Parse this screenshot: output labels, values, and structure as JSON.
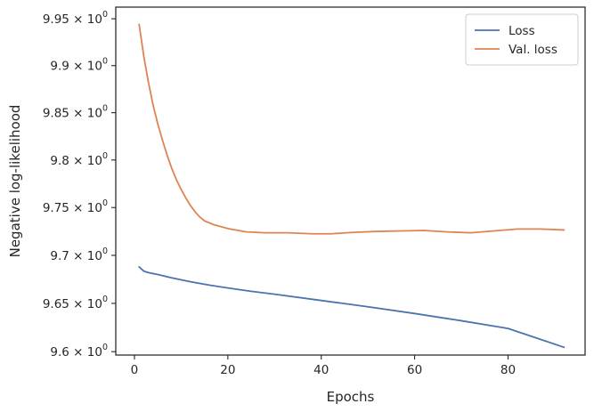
{
  "chart_data": {
    "type": "line",
    "xlabel": "Epochs",
    "ylabel": "Negative log-likelihood",
    "xlim": [
      -4,
      96.5
    ],
    "ylim": [
      9.5965,
      9.9625
    ],
    "yscale": "log",
    "grid": false,
    "legend_position": "top-right",
    "x_ticks": [
      0,
      20,
      40,
      60,
      80
    ],
    "x_tick_labels": [
      "0",
      "20",
      "40",
      "60",
      "80"
    ],
    "y_ticks": [
      9.6,
      9.65,
      9.7,
      9.75,
      9.8,
      9.85,
      9.9,
      9.95
    ],
    "y_tick_labels": [
      {
        "mantissa": "9.6",
        "base": "10",
        "exp": "0"
      },
      {
        "mantissa": "9.65",
        "base": "10",
        "exp": "0"
      },
      {
        "mantissa": "9.7",
        "base": "10",
        "exp": "0"
      },
      {
        "mantissa": "9.75",
        "base": "10",
        "exp": "0"
      },
      {
        "mantissa": "9.8",
        "base": "10",
        "exp": "0"
      },
      {
        "mantissa": "9.85",
        "base": "10",
        "exp": "0"
      },
      {
        "mantissa": "9.9",
        "base": "10",
        "exp": "0"
      },
      {
        "mantissa": "9.95",
        "base": "10",
        "exp": "0"
      }
    ],
    "series": [
      {
        "name": "Loss",
        "color": "#4c72b0",
        "x": [
          1,
          2,
          3,
          5,
          8,
          12,
          16,
          20,
          25,
          30,
          40,
          50,
          60,
          70,
          80,
          92
        ],
        "y": [
          9.688,
          9.6835,
          9.682,
          9.68,
          9.6765,
          9.6725,
          9.669,
          9.666,
          9.6625,
          9.6595,
          9.653,
          9.6465,
          9.6395,
          9.632,
          9.624,
          9.6045
        ]
      },
      {
        "name": "Val. loss",
        "color": "#dd8452",
        "x": [
          1,
          2,
          3,
          4,
          5,
          6,
          7,
          8,
          9,
          10,
          11,
          12,
          13,
          14,
          15,
          17,
          20,
          24,
          28,
          33,
          38,
          42,
          47,
          52,
          57,
          62,
          67,
          72,
          77,
          82,
          87,
          92
        ],
        "y": [
          9.944,
          9.91,
          9.882,
          9.858,
          9.838,
          9.821,
          9.805,
          9.791,
          9.779,
          9.769,
          9.76,
          9.752,
          9.7455,
          9.74,
          9.736,
          9.732,
          9.728,
          9.7245,
          9.7235,
          9.7235,
          9.7225,
          9.7225,
          9.724,
          9.725,
          9.7255,
          9.726,
          9.7245,
          9.7235,
          9.7255,
          9.7275,
          9.7275,
          9.7265
        ]
      }
    ]
  }
}
